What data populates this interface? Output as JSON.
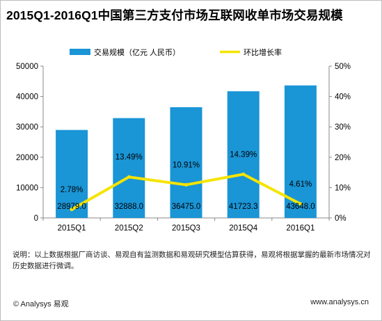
{
  "chart_data": {
    "type": "bar+line",
    "title": "2015Q1-2016Q1中国第三方支付市场互联网收单市场交易规模",
    "categories": [
      "2015Q1",
      "2015Q2",
      "2015Q3",
      "2015Q4",
      "2016Q1"
    ],
    "series": [
      {
        "name": "交易规模（亿元 人民币）",
        "type": "bar",
        "axis": "left",
        "color": "#1a95d6",
        "values": [
          28979.0,
          32888.0,
          36475.0,
          41723.3,
          43648.0
        ],
        "labels": [
          "28979.0",
          "32888.0",
          "36475.0",
          "41723.3",
          "43648.0"
        ]
      },
      {
        "name": "环比增长率",
        "type": "line",
        "axis": "right",
        "color": "#f5e400",
        "values": [
          2.78,
          13.49,
          10.91,
          14.39,
          4.61
        ],
        "labels": [
          "2.78%",
          "13.49%",
          "10.91%",
          "14.39%",
          "4.61%"
        ]
      }
    ],
    "y_left": {
      "min": 0,
      "max": 50000,
      "ticks": [
        "0",
        "10000",
        "20000",
        "30000",
        "40000",
        "50000"
      ]
    },
    "y_right": {
      "min": 0,
      "max": 50,
      "ticks": [
        "0%",
        "10%",
        "20%",
        "30%",
        "40%",
        "50%"
      ]
    },
    "grid": false,
    "legend_position": "top"
  },
  "note": "说明：以上数据根据厂商访谈、易观自有监测数据和易观研究模型估算获得，易观将根据掌握的最新市场情况对历史数据进行微调。",
  "footer": {
    "copyright": "© Analysys 易观",
    "website": "www.analysys.cn"
  }
}
